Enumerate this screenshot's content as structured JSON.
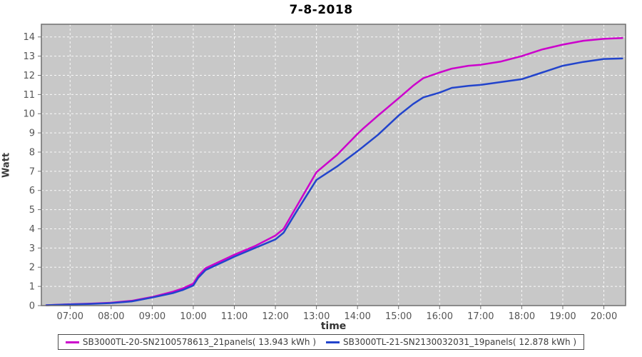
{
  "title": "7-8-2018",
  "chart_data": {
    "type": "line",
    "title": "7-8-2018",
    "xlabel": "time",
    "ylabel": "Watt",
    "x_range_hours": [
      6.3,
      20.53
    ],
    "ylim": [
      0,
      14.66
    ],
    "y_ticks": [
      0,
      1,
      2,
      3,
      4,
      5,
      6,
      7,
      8,
      9,
      10,
      11,
      12,
      13,
      14
    ],
    "x_ticks": [
      {
        "hour": 7,
        "label": "07:00"
      },
      {
        "hour": 8,
        "label": "08:00"
      },
      {
        "hour": 9,
        "label": "09:00"
      },
      {
        "hour": 10,
        "label": "10:00"
      },
      {
        "hour": 11,
        "label": "11:00"
      },
      {
        "hour": 12,
        "label": "12:00"
      },
      {
        "hour": 13,
        "label": "13:00"
      },
      {
        "hour": 14,
        "label": "14:00"
      },
      {
        "hour": 15,
        "label": "15:00"
      },
      {
        "hour": 16,
        "label": "16:00"
      },
      {
        "hour": 17,
        "label": "17:00"
      },
      {
        "hour": 18,
        "label": "18:00"
      },
      {
        "hour": 19,
        "label": "19:00"
      },
      {
        "hour": 20,
        "label": "20:00"
      }
    ],
    "grid": true,
    "legend_position": "bottom",
    "colors": {
      "plot_bg": "#c8c8c8",
      "grid": "#ffffff",
      "border": "#6f6f6f",
      "tick_text": "#555555"
    },
    "series": [
      {
        "name": "SB3000TL-20-SN2100578613_21panels( 13.943 kWh )",
        "color": "#cc00cc",
        "total_kwh": 13.943,
        "points": [
          [
            6.42,
            0.02
          ],
          [
            7.0,
            0.07
          ],
          [
            7.5,
            0.1
          ],
          [
            8.0,
            0.15
          ],
          [
            8.5,
            0.25
          ],
          [
            9.0,
            0.45
          ],
          [
            9.5,
            0.72
          ],
          [
            9.75,
            0.9
          ],
          [
            10.0,
            1.15
          ],
          [
            10.12,
            1.55
          ],
          [
            10.3,
            1.95
          ],
          [
            10.5,
            2.15
          ],
          [
            10.75,
            2.4
          ],
          [
            11.0,
            2.65
          ],
          [
            11.5,
            3.1
          ],
          [
            12.0,
            3.65
          ],
          [
            12.2,
            4.0
          ],
          [
            12.5,
            5.1
          ],
          [
            13.0,
            6.95
          ],
          [
            13.5,
            7.85
          ],
          [
            14.0,
            8.95
          ],
          [
            14.15,
            9.25
          ],
          [
            14.5,
            9.9
          ],
          [
            15.0,
            10.8
          ],
          [
            15.35,
            11.45
          ],
          [
            15.6,
            11.85
          ],
          [
            16.0,
            12.15
          ],
          [
            16.3,
            12.35
          ],
          [
            16.7,
            12.5
          ],
          [
            17.0,
            12.55
          ],
          [
            17.5,
            12.72
          ],
          [
            18.0,
            13.0
          ],
          [
            18.5,
            13.35
          ],
          [
            19.0,
            13.6
          ],
          [
            19.5,
            13.8
          ],
          [
            20.0,
            13.9
          ],
          [
            20.45,
            13.943
          ]
        ]
      },
      {
        "name": "SB3000TL-21-SN2130032031_19panels( 12.878 kWh )",
        "color": "#2244cc",
        "total_kwh": 12.878,
        "points": [
          [
            6.42,
            0.02
          ],
          [
            7.0,
            0.06
          ],
          [
            7.5,
            0.09
          ],
          [
            8.0,
            0.13
          ],
          [
            8.5,
            0.22
          ],
          [
            9.0,
            0.42
          ],
          [
            9.5,
            0.65
          ],
          [
            9.75,
            0.82
          ],
          [
            10.0,
            1.05
          ],
          [
            10.12,
            1.45
          ],
          [
            10.3,
            1.85
          ],
          [
            10.5,
            2.05
          ],
          [
            10.75,
            2.3
          ],
          [
            11.0,
            2.55
          ],
          [
            11.5,
            3.0
          ],
          [
            12.0,
            3.45
          ],
          [
            12.2,
            3.8
          ],
          [
            12.5,
            4.85
          ],
          [
            13.0,
            6.55
          ],
          [
            13.5,
            7.25
          ],
          [
            14.0,
            8.05
          ],
          [
            14.15,
            8.3
          ],
          [
            14.5,
            8.9
          ],
          [
            15.0,
            9.9
          ],
          [
            15.35,
            10.5
          ],
          [
            15.6,
            10.85
          ],
          [
            16.0,
            11.1
          ],
          [
            16.3,
            11.35
          ],
          [
            16.7,
            11.45
          ],
          [
            17.0,
            11.5
          ],
          [
            17.5,
            11.65
          ],
          [
            18.0,
            11.8
          ],
          [
            18.5,
            12.15
          ],
          [
            19.0,
            12.5
          ],
          [
            19.5,
            12.7
          ],
          [
            20.0,
            12.85
          ],
          [
            20.45,
            12.878
          ]
        ]
      }
    ]
  }
}
